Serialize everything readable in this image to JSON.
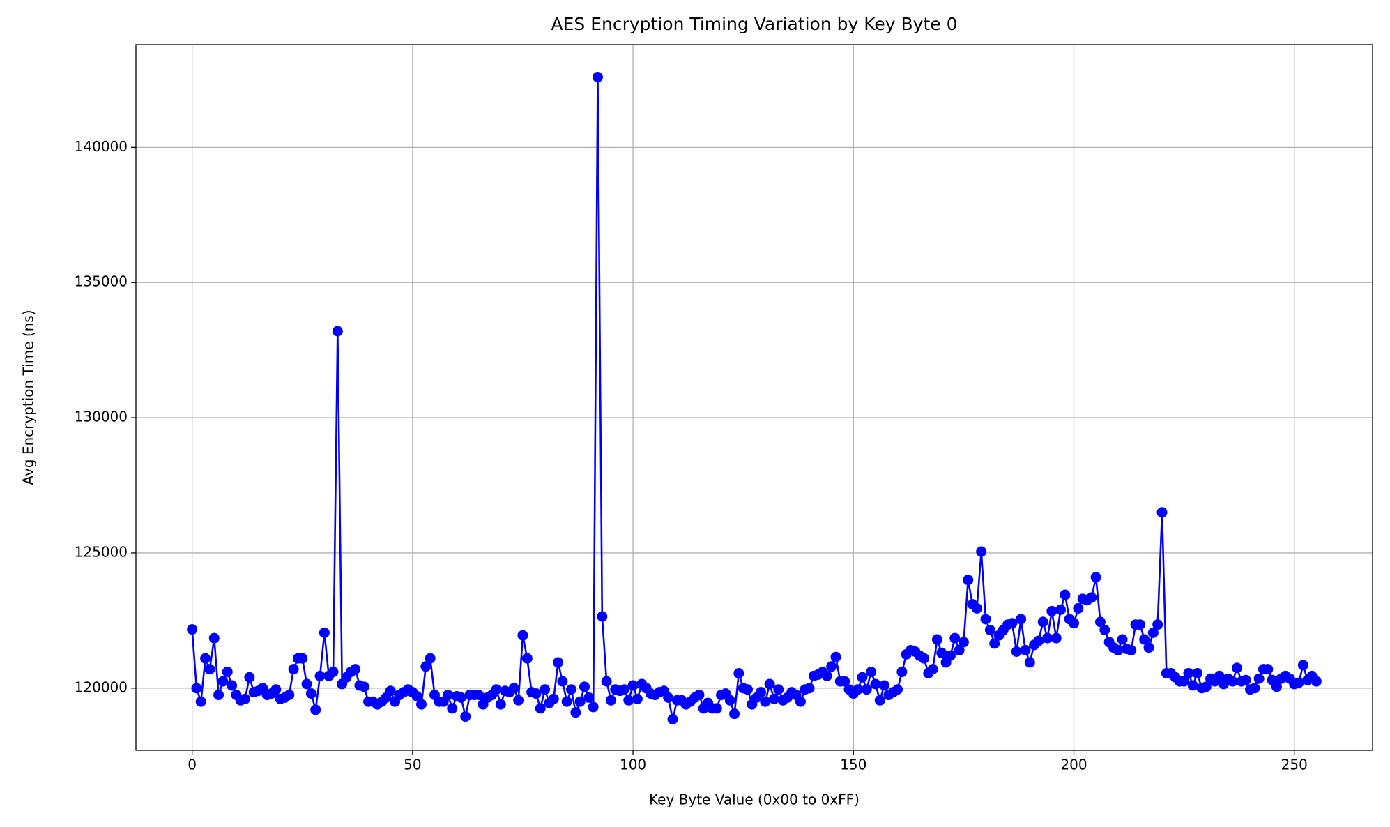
{
  "chart_data": {
    "type": "line",
    "title": "AES Encryption Timing Variation by Key Byte 0",
    "x_label": "Key Byte Value (0x00 to 0xFF)",
    "y_label": "Avg Encryption Time (ns)",
    "color": "#0000ff",
    "grid": true,
    "xlim": [
      -12.75,
      267.75
    ],
    "xticks": [
      0,
      50,
      100,
      150,
      200,
      250
    ],
    "ylim": [
      117700,
      143800
    ],
    "yticks": [
      120000,
      125000,
      130000,
      135000,
      140000
    ],
    "x": [
      0,
      1,
      2,
      3,
      4,
      5,
      6,
      7,
      8,
      9,
      10,
      11,
      12,
      13,
      14,
      15,
      16,
      17,
      18,
      19,
      20,
      21,
      22,
      23,
      24,
      25,
      26,
      27,
      28,
      29,
      30,
      31,
      32,
      33,
      34,
      35,
      36,
      37,
      38,
      39,
      40,
      41,
      42,
      43,
      44,
      45,
      46,
      47,
      48,
      49,
      50,
      51,
      52,
      53,
      54,
      55,
      56,
      57,
      58,
      59,
      60,
      61,
      62,
      63,
      64,
      65,
      66,
      67,
      68,
      69,
      70,
      71,
      72,
      73,
      74,
      75,
      76,
      77,
      78,
      79,
      80,
      81,
      82,
      83,
      84,
      85,
      86,
      87,
      88,
      89,
      90,
      91,
      92,
      93,
      94,
      95,
      96,
      97,
      98,
      99,
      100,
      101,
      102,
      103,
      104,
      105,
      106,
      107,
      108,
      109,
      110,
      111,
      112,
      113,
      114,
      115,
      116,
      117,
      118,
      119,
      120,
      121,
      122,
      123,
      124,
      125,
      126,
      127,
      128,
      129,
      130,
      131,
      132,
      133,
      134,
      135,
      136,
      137,
      138,
      139,
      140,
      141,
      142,
      143,
      144,
      145,
      146,
      147,
      148,
      149,
      150,
      151,
      152,
      153,
      154,
      155,
      156,
      157,
      158,
      159,
      160,
      161,
      162,
      163,
      164,
      165,
      166,
      167,
      168,
      169,
      170,
      171,
      172,
      173,
      174,
      175,
      176,
      177,
      178,
      179,
      180,
      181,
      182,
      183,
      184,
      185,
      186,
      187,
      188,
      189,
      190,
      191,
      192,
      193,
      194,
      195,
      196,
      197,
      198,
      199,
      200,
      201,
      202,
      203,
      204,
      205,
      206,
      207,
      208,
      209,
      210,
      211,
      212,
      213,
      214,
      215,
      216,
      217,
      218,
      219,
      220,
      221,
      222,
      223,
      224,
      225,
      226,
      227,
      228,
      229,
      230,
      231,
      232,
      233,
      234,
      235,
      236,
      237,
      238,
      239,
      240,
      241,
      242,
      243,
      244,
      245,
      246,
      247,
      248,
      249,
      250,
      251,
      252,
      253,
      254,
      255
    ],
    "values": [
      122170,
      120000,
      119500,
      121100,
      120700,
      121850,
      119750,
      120250,
      120600,
      120100,
      119750,
      119550,
      119600,
      120400,
      119850,
      119900,
      120000,
      119750,
      119800,
      119950,
      119600,
      119650,
      119750,
      120700,
      121100,
      121100,
      120150,
      119800,
      119200,
      120450,
      122050,
      120450,
      120600,
      133200,
      120150,
      120400,
      120600,
      120700,
      120100,
      120050,
      119500,
      119500,
      119400,
      119500,
      119650,
      119900,
      119500,
      119750,
      119850,
      119950,
      119850,
      119700,
      119400,
      120800,
      121100,
      119750,
      119500,
      119500,
      119750,
      119250,
      119700,
      119650,
      118950,
      119750,
      119750,
      119750,
      119400,
      119650,
      119750,
      119950,
      119400,
      119900,
      119850,
      120000,
      119550,
      121950,
      121100,
      119850,
      119800,
      119250,
      119950,
      119450,
      119600,
      120950,
      120250,
      119500,
      119950,
      119100,
      119500,
      120050,
      119650,
      119300,
      142600,
      122650,
      120250,
      119550,
      119950,
      119900,
      119950,
      119550,
      120100,
      119600,
      120150,
      120000,
      119800,
      119750,
      119850,
      119900,
      119650,
      118850,
      119550,
      119550,
      119400,
      119500,
      119650,
      119750,
      119250,
      119450,
      119250,
      119250,
      119750,
      119800,
      119550,
      119050,
      120550,
      120000,
      119950,
      119400,
      119650,
      119850,
      119500,
      120150,
      119600,
      119950,
      119550,
      119650,
      119850,
      119750,
      119500,
      119950,
      120000,
      120450,
      120500,
      120600,
      120450,
      120800,
      121150,
      120250,
      120250,
      119950,
      119800,
      119950,
      120400,
      119950,
      120600,
      120150,
      119550,
      120100,
      119750,
      119850,
      119950,
      120600,
      121250,
      121400,
      121350,
      121200,
      121100,
      120550,
      120700,
      121800,
      121300,
      120950,
      121200,
      121850,
      121400,
      121700,
      124000,
      123100,
      122950,
      125050,
      122550,
      122150,
      121650,
      121950,
      122150,
      122350,
      122400,
      121350,
      122550,
      121400,
      120950,
      121600,
      121750,
      122450,
      121850,
      122850,
      121850,
      122900,
      123450,
      122550,
      122400,
      122950,
      123300,
      123250,
      123350,
      124100,
      122450,
      122150,
      121700,
      121500,
      121400,
      121800,
      121450,
      121400,
      122350,
      122350,
      121800,
      121500,
      122050,
      122350,
      126500,
      120550,
      120550,
      120400,
      120250,
      120250,
      120550,
      120100,
      120550,
      120000,
      120050,
      120350,
      120250,
      120450,
      120150,
      120350,
      120250,
      120750,
      120250,
      120300,
      119950,
      120000,
      120350,
      120700,
      120700,
      120300,
      120050,
      120350,
      120450,
      120350,
      120150,
      120200,
      120850,
      120300,
      120450,
      120250
    ]
  }
}
